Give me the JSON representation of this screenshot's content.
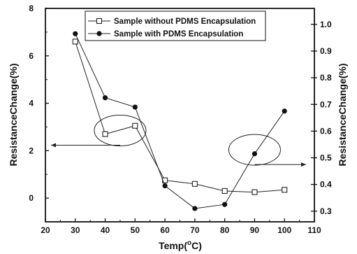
{
  "chart_data": {
    "type": "line",
    "title": "",
    "xlabel": "Temp(°C)",
    "xlabel_base": "Temp(",
    "xlabel_sup": "o",
    "xlabel_unit": "C)",
    "ylabel": "ResistanceChange(%)",
    "y2label": "ResistanceChange(%)",
    "xlim": [
      20,
      110
    ],
    "ylim": [
      -1,
      8
    ],
    "y2lim": [
      0.26,
      1.06
    ],
    "xticks": [
      20,
      30,
      40,
      50,
      60,
      70,
      80,
      90,
      100,
      110
    ],
    "yticks": [
      0,
      2,
      4,
      6,
      8
    ],
    "y2ticks": [
      0.3,
      0.4,
      0.5,
      0.6,
      0.7,
      0.8,
      0.9,
      1.0
    ],
    "y2ticklabels": [
      "0.3",
      "0.4",
      "0.5",
      "0.6",
      "0.7",
      "0.8",
      "0.9",
      "1.0"
    ],
    "grid": false,
    "legend_position": "top",
    "series": [
      {
        "name": "Sample without PDMS Encapsulation",
        "axis": "left",
        "marker": "open-square",
        "color": "#222222",
        "x": [
          30,
          40,
          50,
          60,
          70,
          80,
          90,
          100
        ],
        "values": [
          6.6,
          2.7,
          3.05,
          0.75,
          0.6,
          0.3,
          0.25,
          0.35
        ]
      },
      {
        "name": "Sample with PDMS Encapsulation",
        "axis": "right",
        "marker": "filled-circle",
        "color": "#222222",
        "x": [
          30,
          40,
          50,
          60,
          70,
          80,
          90,
          100
        ],
        "values": [
          0.965,
          0.725,
          0.69,
          0.395,
          0.31,
          0.325,
          0.515,
          0.675
        ]
      }
    ],
    "annotations": [
      {
        "type": "ellipse-arrow",
        "x": 45,
        "y": 2.85,
        "points": "left",
        "axis": "left"
      },
      {
        "type": "ellipse-arrow",
        "x": 90,
        "y": 0.53,
        "points": "right",
        "axis": "right"
      }
    ]
  }
}
